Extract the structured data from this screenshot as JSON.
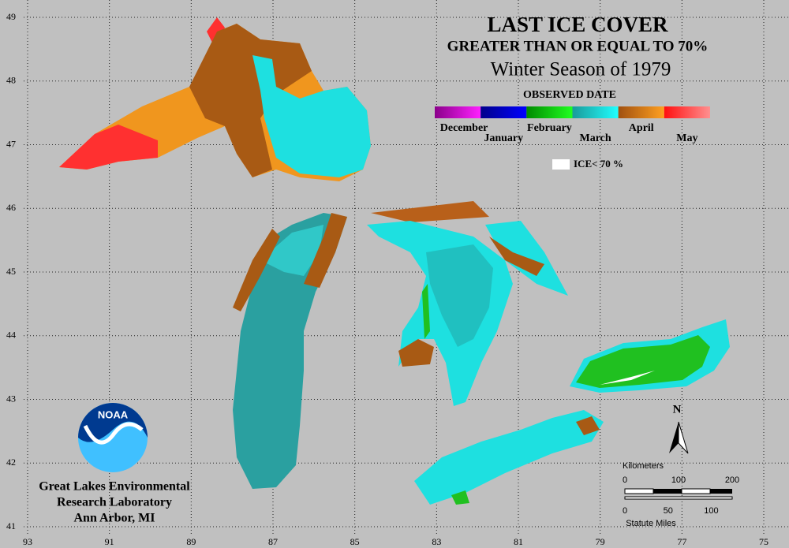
{
  "title": "LAST ICE COVER",
  "subtitle": "GREATER THAN OR EQUAL TO 70%",
  "season": "Winter Season of 1979",
  "legend": {
    "title": "OBSERVED DATE",
    "months": [
      {
        "label": "December",
        "colors": [
          "#8a008a",
          "#ff20ff"
        ]
      },
      {
        "label": "January",
        "colors": [
          "#00008a",
          "#0000ff"
        ]
      },
      {
        "label": "February",
        "colors": [
          "#008a00",
          "#20ff20"
        ]
      },
      {
        "label": "March",
        "colors": [
          "#1a9a9a",
          "#20ffff"
        ]
      },
      {
        "label": "April",
        "colors": [
          "#a05010",
          "#ffa020"
        ]
      },
      {
        "label": "May",
        "colors": [
          "#ff1010",
          "#ff9090"
        ]
      }
    ],
    "low_ice": "ICE< 70 %"
  },
  "latitudes": [
    49,
    48,
    47,
    46,
    45,
    44,
    43,
    42,
    41
  ],
  "longitudes": [
    93,
    91,
    89,
    87,
    85,
    83,
    81,
    79,
    77,
    75
  ],
  "logo": "NOAA",
  "credit": [
    "Great Lakes Environmental",
    "Research Laboratory",
    "Ann Arbor, MI"
  ],
  "scale": {
    "north": "N",
    "km_title": "Kilometers",
    "km_ticks": [
      0,
      100,
      200
    ],
    "mi_ticks": [
      0,
      50,
      100
    ],
    "mi_title": "Statute Miles"
  }
}
